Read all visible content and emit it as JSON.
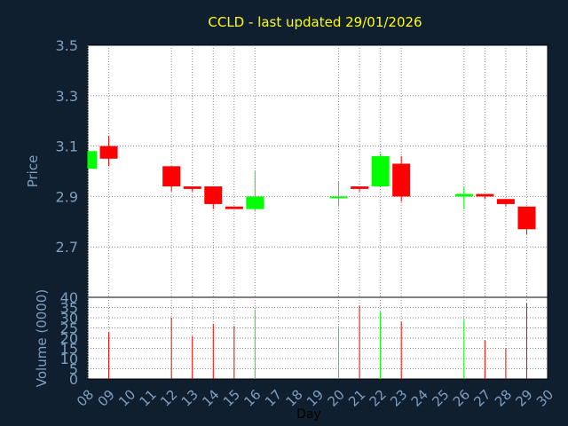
{
  "colors": {
    "background": "#0f1f2f",
    "plot_background": "#ffffff",
    "title": "#ffff00",
    "axis_text": "#7f9fbf",
    "day_label": "#000000",
    "up": "#00ff00",
    "down": "#ff0000",
    "grid": "#8a8a8a"
  },
  "chart_data": [
    {
      "type": "candlestick",
      "title": "CCLD - last updated 29/01/2026",
      "ylabel": "Price",
      "ylim": [
        2.5,
        3.5
      ],
      "yticks": [
        "3.5",
        "3.3",
        "3.1",
        "2.9",
        "2.7"
      ],
      "grid": true,
      "x_domain": [
        8,
        30
      ],
      "days": [
        8,
        9,
        12,
        13,
        14,
        15,
        16,
        20,
        21,
        22,
        23,
        26,
        27,
        28,
        29
      ],
      "candles": [
        {
          "day": 8,
          "open": 3.01,
          "high": 3.08,
          "low": 3.01,
          "close": 3.08
        },
        {
          "day": 9,
          "open": 3.1,
          "high": 3.14,
          "low": 3.02,
          "close": 3.05
        },
        {
          "day": 12,
          "open": 3.02,
          "high": 3.02,
          "low": 2.92,
          "close": 2.94
        },
        {
          "day": 13,
          "open": 2.94,
          "high": 2.94,
          "low": 2.92,
          "close": 2.93
        },
        {
          "day": 14,
          "open": 2.94,
          "high": 2.94,
          "low": 2.85,
          "close": 2.87
        },
        {
          "day": 15,
          "open": 2.86,
          "high": 2.86,
          "low": 2.85,
          "close": 2.85
        },
        {
          "day": 16,
          "open": 2.85,
          "high": 3.0,
          "low": 2.84,
          "close": 2.9
        },
        {
          "day": 20,
          "open": 2.9,
          "high": 2.96,
          "low": 2.86,
          "close": 2.9
        },
        {
          "day": 21,
          "open": 2.94,
          "high": 2.94,
          "low": 2.92,
          "close": 2.93
        },
        {
          "day": 22,
          "open": 2.94,
          "high": 3.07,
          "low": 2.94,
          "close": 3.06
        },
        {
          "day": 23,
          "open": 3.03,
          "high": 3.06,
          "low": 2.88,
          "close": 2.9
        },
        {
          "day": 26,
          "open": 2.9,
          "high": 2.94,
          "low": 2.85,
          "close": 2.91
        },
        {
          "day": 27,
          "open": 2.91,
          "high": 2.91,
          "low": 2.89,
          "close": 2.9
        },
        {
          "day": 28,
          "open": 2.89,
          "high": 2.89,
          "low": 2.86,
          "close": 2.87
        },
        {
          "day": 29,
          "open": 2.86,
          "high": 2.86,
          "low": 2.75,
          "close": 2.77
        }
      ]
    },
    {
      "type": "bar",
      "ylabel": "Volume (0000)",
      "ylim": [
        0,
        40
      ],
      "yticks": [
        "40",
        "35",
        "30",
        "25",
        "20",
        "15",
        "10",
        "5",
        "0"
      ],
      "xlabel": "Day",
      "xticks": [
        "08",
        "09",
        "10",
        "11",
        "12",
        "13",
        "14",
        "15",
        "16",
        "17",
        "18",
        "19",
        "20",
        "21",
        "22",
        "23",
        "24",
        "25",
        "26",
        "27",
        "28",
        "29",
        "30"
      ],
      "grid": true,
      "bars": [
        {
          "day": 9,
          "volume": 23,
          "dir": "down"
        },
        {
          "day": 12,
          "volume": 30,
          "dir": "down"
        },
        {
          "day": 13,
          "volume": 21,
          "dir": "down"
        },
        {
          "day": 14,
          "volume": 27,
          "dir": "down"
        },
        {
          "day": 15,
          "volume": 26,
          "dir": "down"
        },
        {
          "day": 16,
          "volume": 34,
          "dir": "up"
        },
        {
          "day": 20,
          "volume": 26,
          "dir": "up"
        },
        {
          "day": 21,
          "volume": 36,
          "dir": "down"
        },
        {
          "day": 22,
          "volume": 33,
          "dir": "up"
        },
        {
          "day": 23,
          "volume": 28,
          "dir": "down"
        },
        {
          "day": 26,
          "volume": 29,
          "dir": "up"
        },
        {
          "day": 27,
          "volume": 19,
          "dir": "down"
        },
        {
          "day": 28,
          "volume": 15,
          "dir": "down"
        },
        {
          "day": 29,
          "volume": 37,
          "dir": "down"
        }
      ]
    }
  ]
}
